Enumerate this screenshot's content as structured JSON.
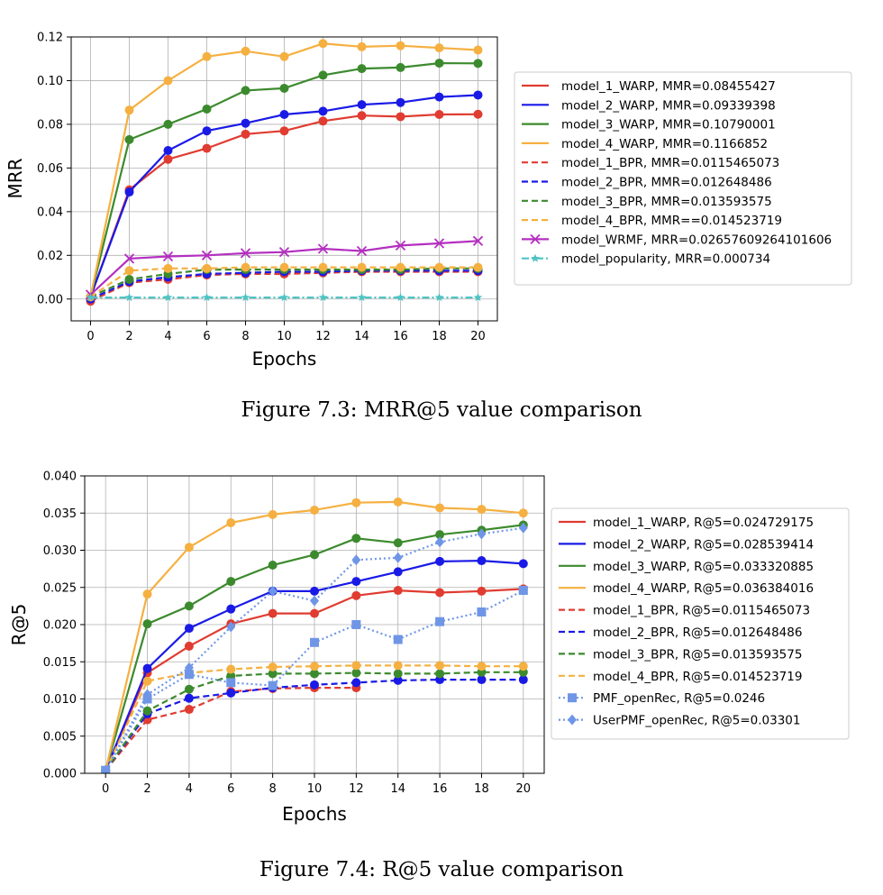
{
  "figures": [
    {
      "caption": "Figure 7.3: MRR@5 value comparison"
    },
    {
      "caption": "Figure 7.4: R@5 value comparison"
    }
  ],
  "chart_data": [
    {
      "type": "line",
      "title": "",
      "xlabel": "Epochs",
      "ylabel": "MRR",
      "xlim": [
        -1,
        21
      ],
      "ylim": [
        -0.01,
        0.12
      ],
      "xticks": [
        0,
        2,
        4,
        6,
        8,
        10,
        12,
        14,
        16,
        18,
        20
      ],
      "yticks": [
        0.0,
        0.02,
        0.04,
        0.06,
        0.08,
        0.1,
        0.12
      ],
      "ytick_labels": [
        "0.00",
        "0.02",
        "0.04",
        "0.06",
        "0.08",
        "0.10",
        "0.12"
      ],
      "grid": true,
      "legend_placement": "outside-right",
      "series": [
        {
          "name": "model_1_WARP, MMR=0.08455427",
          "color": "#e03c31",
          "style": "solid",
          "marker": "circle",
          "x": [
            0,
            2,
            4,
            6,
            8,
            10,
            12,
            14,
            16,
            18,
            20
          ],
          "values": [
            0.001,
            0.05,
            0.064,
            0.069,
            0.0755,
            0.077,
            0.0815,
            0.084,
            0.0835,
            0.0845,
            0.0846
          ]
        },
        {
          "name": "model_2_WARP, MMR=0.09339398",
          "color": "#1a1ae6",
          "style": "solid",
          "marker": "circle",
          "x": [
            0,
            2,
            4,
            6,
            8,
            10,
            12,
            14,
            16,
            18,
            20
          ],
          "values": [
            0.001,
            0.049,
            0.068,
            0.077,
            0.0805,
            0.0845,
            0.086,
            0.089,
            0.09,
            0.0925,
            0.0934
          ]
        },
        {
          "name": "model_3_WARP, MMR=0.10790001",
          "color": "#3c8a2e",
          "style": "solid",
          "marker": "circle",
          "x": [
            0,
            2,
            4,
            6,
            8,
            10,
            12,
            14,
            16,
            18,
            20
          ],
          "values": [
            0.001,
            0.073,
            0.08,
            0.087,
            0.0955,
            0.0965,
            0.1025,
            0.1055,
            0.106,
            0.108,
            0.1079
          ]
        },
        {
          "name": "model_4_WARP, MMR=0.1166852",
          "color": "#f5b041",
          "style": "solid",
          "marker": "circle",
          "x": [
            0,
            2,
            4,
            6,
            8,
            10,
            12,
            14,
            16,
            18,
            20
          ],
          "values": [
            0.001,
            0.0865,
            0.1,
            0.111,
            0.1135,
            0.111,
            0.117,
            0.1155,
            0.116,
            0.115,
            0.114
          ]
        },
        {
          "name": "model_1_BPR, MMR=0.0115465073",
          "color": "#e03c31",
          "style": "dashed",
          "marker": "circle",
          "x": [
            0,
            2,
            4,
            6,
            8,
            10,
            12,
            14,
            16,
            18,
            20
          ],
          "values": [
            -0.001,
            0.0075,
            0.009,
            0.011,
            0.0115,
            0.0115,
            0.012,
            0.0125,
            0.0125,
            0.0125,
            0.0125
          ]
        },
        {
          "name": "model_2_BPR, MMR=0.012648486",
          "color": "#1a1ae6",
          "style": "dashed",
          "marker": "circle",
          "x": [
            0,
            2,
            4,
            6,
            8,
            10,
            12,
            14,
            16,
            18,
            20
          ],
          "values": [
            0.0,
            0.008,
            0.01,
            0.0115,
            0.012,
            0.0125,
            0.0125,
            0.013,
            0.013,
            0.013,
            0.013
          ]
        },
        {
          "name": "model_3_BPR, MMR=0.013593575",
          "color": "#3c8a2e",
          "style": "dashed",
          "marker": "circle",
          "x": [
            0,
            2,
            4,
            6,
            8,
            10,
            12,
            14,
            16,
            18,
            20
          ],
          "values": [
            0.001,
            0.009,
            0.0115,
            0.0135,
            0.0135,
            0.0135,
            0.0135,
            0.0135,
            0.0135,
            0.014,
            0.014
          ]
        },
        {
          "name": "model_4_BPR, MMR==0.014523719",
          "color": "#f5b041",
          "style": "dashed",
          "marker": "circle",
          "x": [
            0,
            2,
            4,
            6,
            8,
            10,
            12,
            14,
            16,
            18,
            20
          ],
          "values": [
            0.001,
            0.013,
            0.014,
            0.014,
            0.0145,
            0.0145,
            0.0145,
            0.0145,
            0.0145,
            0.0145,
            0.0145
          ]
        },
        {
          "name": "model_WRMF, MRR=0.02657609264101606",
          "color": "#b42fc0",
          "style": "solid",
          "marker": "x",
          "x": [
            0,
            2,
            4,
            6,
            8,
            10,
            12,
            14,
            16,
            18,
            20
          ],
          "values": [
            0.002,
            0.0185,
            0.0195,
            0.02,
            0.021,
            0.0215,
            0.023,
            0.022,
            0.0245,
            0.0255,
            0.0266
          ]
        },
        {
          "name": "model_popularity, MRR=0.000734",
          "color": "#4fc3c3",
          "style": "dashdot",
          "marker": "star",
          "x": [
            0,
            2,
            4,
            6,
            8,
            10,
            12,
            14,
            16,
            18,
            20
          ],
          "values": [
            0.0007,
            0.0007,
            0.0007,
            0.0007,
            0.0007,
            0.0007,
            0.0007,
            0.0007,
            0.0007,
            0.0007,
            0.0007
          ]
        }
      ]
    },
    {
      "type": "line",
      "title": "",
      "xlabel": "Epochs",
      "ylabel": "R@5",
      "xlim": [
        -1,
        21
      ],
      "ylim": [
        0,
        0.04
      ],
      "xticks": [
        0,
        2,
        4,
        6,
        8,
        10,
        12,
        14,
        16,
        18,
        20
      ],
      "yticks": [
        0.0,
        0.005,
        0.01,
        0.015,
        0.02,
        0.025,
        0.03,
        0.035,
        0.04
      ],
      "ytick_labels": [
        "0.000",
        "0.005",
        "0.010",
        "0.015",
        "0.020",
        "0.025",
        "0.030",
        "0.035",
        "0.040"
      ],
      "grid": true,
      "legend_placement": "outside-right",
      "series": [
        {
          "name": "model_1_WARP, R@5=0.024729175",
          "color": "#e03c31",
          "style": "solid",
          "marker": "circle",
          "x": [
            0,
            2,
            4,
            6,
            8,
            10,
            12,
            14,
            16,
            18,
            20
          ],
          "values": [
            0.0004,
            0.0135,
            0.0171,
            0.0201,
            0.0215,
            0.0215,
            0.0239,
            0.0246,
            0.0243,
            0.0245,
            0.0248
          ]
        },
        {
          "name": "model_2_WARP, R@5=0.028539414",
          "color": "#1a1ae6",
          "style": "solid",
          "marker": "circle",
          "x": [
            0,
            2,
            4,
            6,
            8,
            10,
            12,
            14,
            16,
            18,
            20
          ],
          "values": [
            0.0004,
            0.0141,
            0.0195,
            0.0221,
            0.0245,
            0.0245,
            0.0258,
            0.0271,
            0.0285,
            0.0286,
            0.0282
          ]
        },
        {
          "name": "model_3_WARP, R@5=0.033320885",
          "color": "#3c8a2e",
          "style": "solid",
          "marker": "circle",
          "x": [
            0,
            2,
            4,
            6,
            8,
            10,
            12,
            14,
            16,
            18,
            20
          ],
          "values": [
            0.0004,
            0.0201,
            0.0225,
            0.0258,
            0.028,
            0.0294,
            0.0316,
            0.031,
            0.0321,
            0.0327,
            0.0334
          ]
        },
        {
          "name": "model_4_WARP, R@5=0.036384016",
          "color": "#f5b041",
          "style": "solid",
          "marker": "circle",
          "x": [
            0,
            2,
            4,
            6,
            8,
            10,
            12,
            14,
            16,
            18,
            20
          ],
          "values": [
            0.0004,
            0.0241,
            0.0304,
            0.0337,
            0.0348,
            0.0354,
            0.0364,
            0.0365,
            0.0357,
            0.0355,
            0.035
          ]
        },
        {
          "name": "model_1_BPR, R@5=0.0115465073",
          "color": "#e03c31",
          "style": "dashed",
          "marker": "circle",
          "x": [
            0,
            2,
            4,
            6,
            8,
            10,
            12
          ],
          "values": [
            0.0004,
            0.0072,
            0.0086,
            0.011,
            0.0114,
            0.0115,
            0.0115
          ]
        },
        {
          "name": "model_2_BPR, R@5=0.012648486",
          "color": "#1a1ae6",
          "style": "dashed",
          "marker": "circle",
          "x": [
            0,
            2,
            4,
            6,
            8,
            10,
            12,
            14,
            16,
            18,
            20
          ],
          "values": [
            0.0004,
            0.008,
            0.0101,
            0.0108,
            0.0115,
            0.0119,
            0.0122,
            0.0125,
            0.0126,
            0.0126,
            0.0126
          ]
        },
        {
          "name": "model_3_BPR, R@5=0.013593575",
          "color": "#3c8a2e",
          "style": "dashed",
          "marker": "circle",
          "x": [
            0,
            2,
            4,
            6,
            8,
            10,
            12,
            14,
            16,
            18,
            20
          ],
          "values": [
            0.0004,
            0.0084,
            0.0113,
            0.0131,
            0.0134,
            0.0134,
            0.0135,
            0.0134,
            0.0134,
            0.0136,
            0.0136
          ]
        },
        {
          "name": "model_4_BPR, R@5=0.014523719",
          "color": "#f5b041",
          "style": "dashed",
          "marker": "circle",
          "x": [
            0,
            2,
            4,
            6,
            8,
            10,
            12,
            14,
            16,
            18,
            20
          ],
          "values": [
            0.0004,
            0.0124,
            0.0135,
            0.014,
            0.0143,
            0.0144,
            0.0145,
            0.0145,
            0.0145,
            0.0144,
            0.0144
          ]
        },
        {
          "name": "PMF_openRec, R@5=0.0246",
          "color": "#6f96e6",
          "style": "dotted",
          "marker": "square",
          "x": [
            0,
            2,
            4,
            6,
            8,
            10,
            12,
            14,
            16,
            18,
            20
          ],
          "values": [
            0.0004,
            0.01,
            0.0133,
            0.0122,
            0.0118,
            0.0176,
            0.02,
            0.018,
            0.0204,
            0.0217,
            0.0246
          ]
        },
        {
          "name": "UserPMF_openRec, R@5=0.03301",
          "color": "#6f96e6",
          "style": "dotted",
          "marker": "diamond",
          "x": [
            0,
            2,
            4,
            6,
            8,
            10,
            12,
            14,
            16,
            18,
            20
          ],
          "values": [
            0.0004,
            0.0106,
            0.0142,
            0.0197,
            0.0245,
            0.0232,
            0.0287,
            0.029,
            0.0311,
            0.0322,
            0.033
          ]
        }
      ]
    }
  ]
}
